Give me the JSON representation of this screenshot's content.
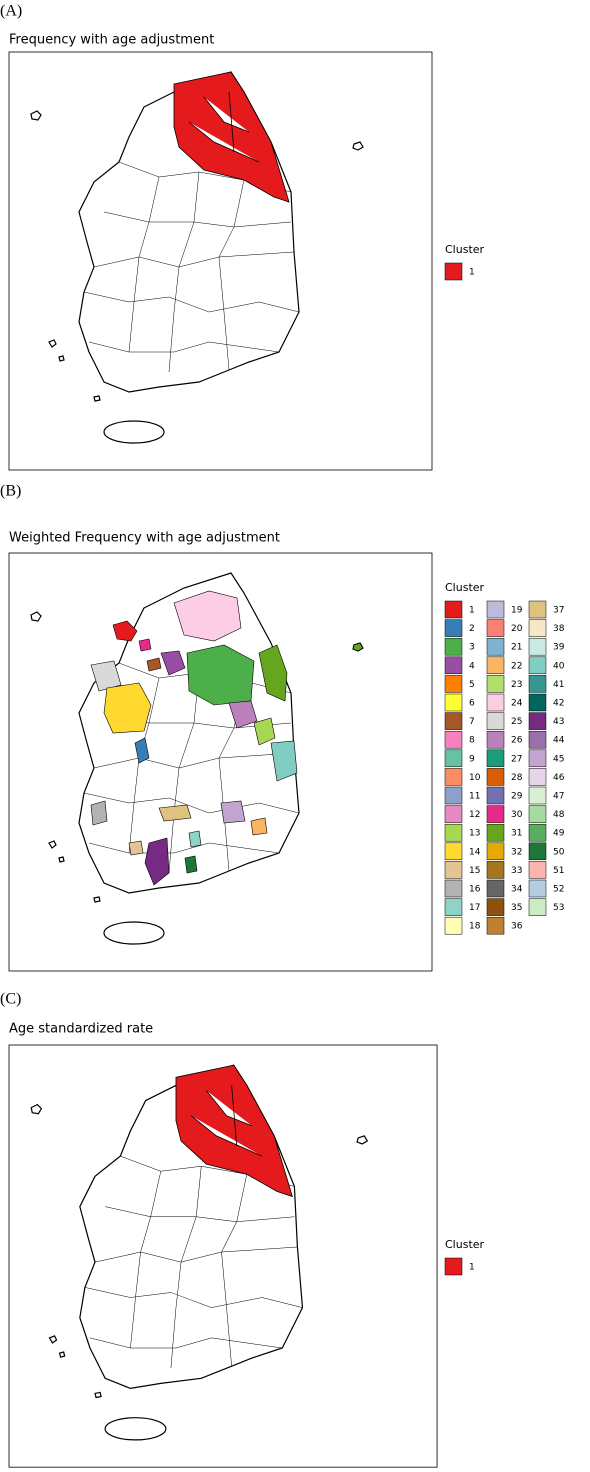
{
  "panels": [
    {
      "label": "(A)",
      "title": "Frequency with age adjustment",
      "legend": {
        "title": "Cluster",
        "items": [
          {
            "label": "1",
            "color": "#e41a1c"
          }
        ]
      }
    },
    {
      "label": "(B)",
      "title": "Weighted Frequency with age adjustment",
      "legend": {
        "title": "Cluster",
        "items": [
          {
            "label": "1",
            "color": "#e41a1c"
          },
          {
            "label": "2",
            "color": "#377eb8"
          },
          {
            "label": "3",
            "color": "#4daf4a"
          },
          {
            "label": "4",
            "color": "#984ea3"
          },
          {
            "label": "5",
            "color": "#ff7f00"
          },
          {
            "label": "6",
            "color": "#ffff33"
          },
          {
            "label": "7",
            "color": "#a65628"
          },
          {
            "label": "8",
            "color": "#f781bf"
          },
          {
            "label": "9",
            "color": "#66c2a5"
          },
          {
            "label": "10",
            "color": "#fc8d62"
          },
          {
            "label": "11",
            "color": "#8da0cb"
          },
          {
            "label": "12",
            "color": "#e78ac3"
          },
          {
            "label": "13",
            "color": "#a6d854"
          },
          {
            "label": "14",
            "color": "#ffd92f"
          },
          {
            "label": "15",
            "color": "#e5c494"
          },
          {
            "label": "16",
            "color": "#b3b3b3"
          },
          {
            "label": "17",
            "color": "#8dd3c7"
          },
          {
            "label": "18",
            "color": "#ffffb3"
          },
          {
            "label": "19",
            "color": "#bebada"
          },
          {
            "label": "20",
            "color": "#fb8072"
          },
          {
            "label": "21",
            "color": "#80b1d3"
          },
          {
            "label": "22",
            "color": "#fdb462"
          },
          {
            "label": "23",
            "color": "#b3de69"
          },
          {
            "label": "24",
            "color": "#fccde5"
          },
          {
            "label": "25",
            "color": "#d9d9d9"
          },
          {
            "label": "26",
            "color": "#bc80bd"
          },
          {
            "label": "27",
            "color": "#1b9e77"
          },
          {
            "label": "28",
            "color": "#d95f02"
          },
          {
            "label": "29",
            "color": "#7570b3"
          },
          {
            "label": "30",
            "color": "#e7298a"
          },
          {
            "label": "31",
            "color": "#66a61e"
          },
          {
            "label": "32",
            "color": "#e6ab02"
          },
          {
            "label": "33",
            "color": "#a6761d"
          },
          {
            "label": "34",
            "color": "#666666"
          },
          {
            "label": "35",
            "color": "#8c510a"
          },
          {
            "label": "36",
            "color": "#bf812d"
          },
          {
            "label": "37",
            "color": "#dfc27d"
          },
          {
            "label": "38",
            "color": "#f6e8c3"
          },
          {
            "label": "39",
            "color": "#c7eae5"
          },
          {
            "label": "40",
            "color": "#80cdc1"
          },
          {
            "label": "41",
            "color": "#35978f"
          },
          {
            "label": "42",
            "color": "#01665e"
          },
          {
            "label": "43",
            "color": "#762a83"
          },
          {
            "label": "44",
            "color": "#9970ab"
          },
          {
            "label": "45",
            "color": "#c2a5cf"
          },
          {
            "label": "46",
            "color": "#e7d4e8"
          },
          {
            "label": "47",
            "color": "#d9f0d3"
          },
          {
            "label": "48",
            "color": "#a6dba0"
          },
          {
            "label": "49",
            "color": "#5aae61"
          },
          {
            "label": "50",
            "color": "#1b7837"
          },
          {
            "label": "51",
            "color": "#fbb4ae"
          },
          {
            "label": "52",
            "color": "#b3cde3"
          },
          {
            "label": "53",
            "color": "#ccebc5"
          }
        ]
      }
    },
    {
      "label": "(C)",
      "title": "Age standardized rate",
      "legend": {
        "title": "Cluster",
        "items": [
          {
            "label": "1",
            "color": "#e41a1c"
          }
        ]
      }
    }
  ]
}
